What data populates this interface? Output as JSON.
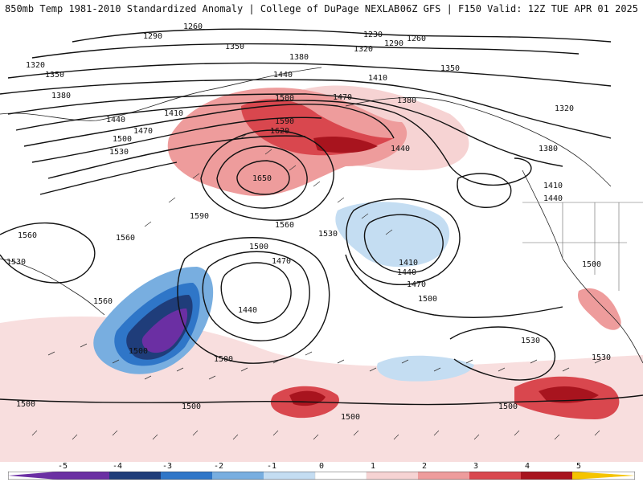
{
  "header": {
    "left_text": "850mb Temp 1981-2010 Standardized Anomaly | College of DuPage NEXLAB",
    "right_text": "06Z GFS | F150 Valid: 12Z TUE APR 01 2025"
  },
  "contour_labels": [
    "1260",
    "1290",
    "1230",
    "1290",
    "1260",
    "1320",
    "1350",
    "1380",
    "1320",
    "1350",
    "1350",
    "1380",
    "1410",
    "1440",
    "1470",
    "1500",
    "1590",
    "1620",
    "1380",
    "1320",
    "1440",
    "1410",
    "1470",
    "1500",
    "1530",
    "1650",
    "1380",
    "1410",
    "1440",
    "1440",
    "1590",
    "1560",
    "1530",
    "1560",
    "1560",
    "1530",
    "1500",
    "1470",
    "1410",
    "1440",
    "1470",
    "1500",
    "1440",
    "1560",
    "1500",
    "1530",
    "1500",
    "1530",
    "1500",
    "1500",
    "1500",
    "1500",
    "1500"
  ],
  "colors": {
    "neg5": "#6b2fa3",
    "neg4": "#1f3d7a",
    "neg3": "#2f76c8",
    "neg2": "#78aee0",
    "neg1": "#c4ddf2",
    "zero": "#ffffff",
    "pos1": "#f6d3d3",
    "pos2": "#ee9c9c",
    "pos3": "#d9474e",
    "pos4": "#a8141e",
    "pos5": "#f5c400"
  },
  "legend": {
    "ticks": [
      "-5",
      "-4",
      "-3",
      "-2",
      "-1",
      "0",
      "1",
      "2",
      "3",
      "4",
      "5"
    ]
  }
}
